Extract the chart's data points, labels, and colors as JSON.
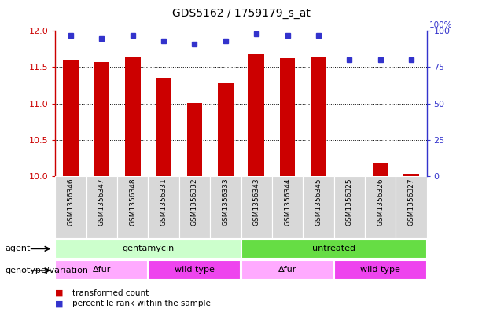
{
  "title": "GDS5162 / 1759179_s_at",
  "samples": [
    "GSM1356346",
    "GSM1356347",
    "GSM1356348",
    "GSM1356331",
    "GSM1356332",
    "GSM1356333",
    "GSM1356343",
    "GSM1356344",
    "GSM1356345",
    "GSM1356325",
    "GSM1356326",
    "GSM1356327"
  ],
  "bar_values": [
    11.6,
    11.57,
    11.63,
    11.35,
    11.01,
    11.28,
    11.68,
    11.62,
    11.63,
    10.0,
    10.18,
    10.03
  ],
  "dot_values": [
    97,
    95,
    97,
    93,
    91,
    93,
    98,
    97,
    97,
    80,
    80,
    80
  ],
  "ylim_left": [
    10,
    12
  ],
  "ylim_right": [
    0,
    100
  ],
  "yticks_left": [
    10,
    10.5,
    11,
    11.5,
    12
  ],
  "yticks_right": [
    0,
    25,
    50,
    75,
    100
  ],
  "bar_color": "#cc0000",
  "dot_color": "#3333cc",
  "bar_width": 0.5,
  "agent_groups": [
    {
      "label": "gentamycin",
      "start": 0,
      "end": 6,
      "color": "#ccffcc"
    },
    {
      "label": "untreated",
      "start": 6,
      "end": 12,
      "color": "#66dd44"
    }
  ],
  "genotype_groups": [
    {
      "label": "Δfur",
      "start": 0,
      "end": 3,
      "color": "#ffaaff"
    },
    {
      "label": "wild type",
      "start": 3,
      "end": 6,
      "color": "#ee44ee"
    },
    {
      "label": "Δfur",
      "start": 6,
      "end": 9,
      "color": "#ffaaff"
    },
    {
      "label": "wild type",
      "start": 9,
      "end": 12,
      "color": "#ee44ee"
    }
  ],
  "agent_label": "agent",
  "genotype_label": "genotype/variation",
  "legend_bar": "transformed count",
  "legend_dot": "percentile rank within the sample",
  "bg_color": "#ffffff",
  "tick_color_left": "#cc0000",
  "tick_color_right": "#3333cc",
  "dotted_lines": [
    10.5,
    11.0,
    11.5
  ],
  "right_axis_top_label": "100%"
}
